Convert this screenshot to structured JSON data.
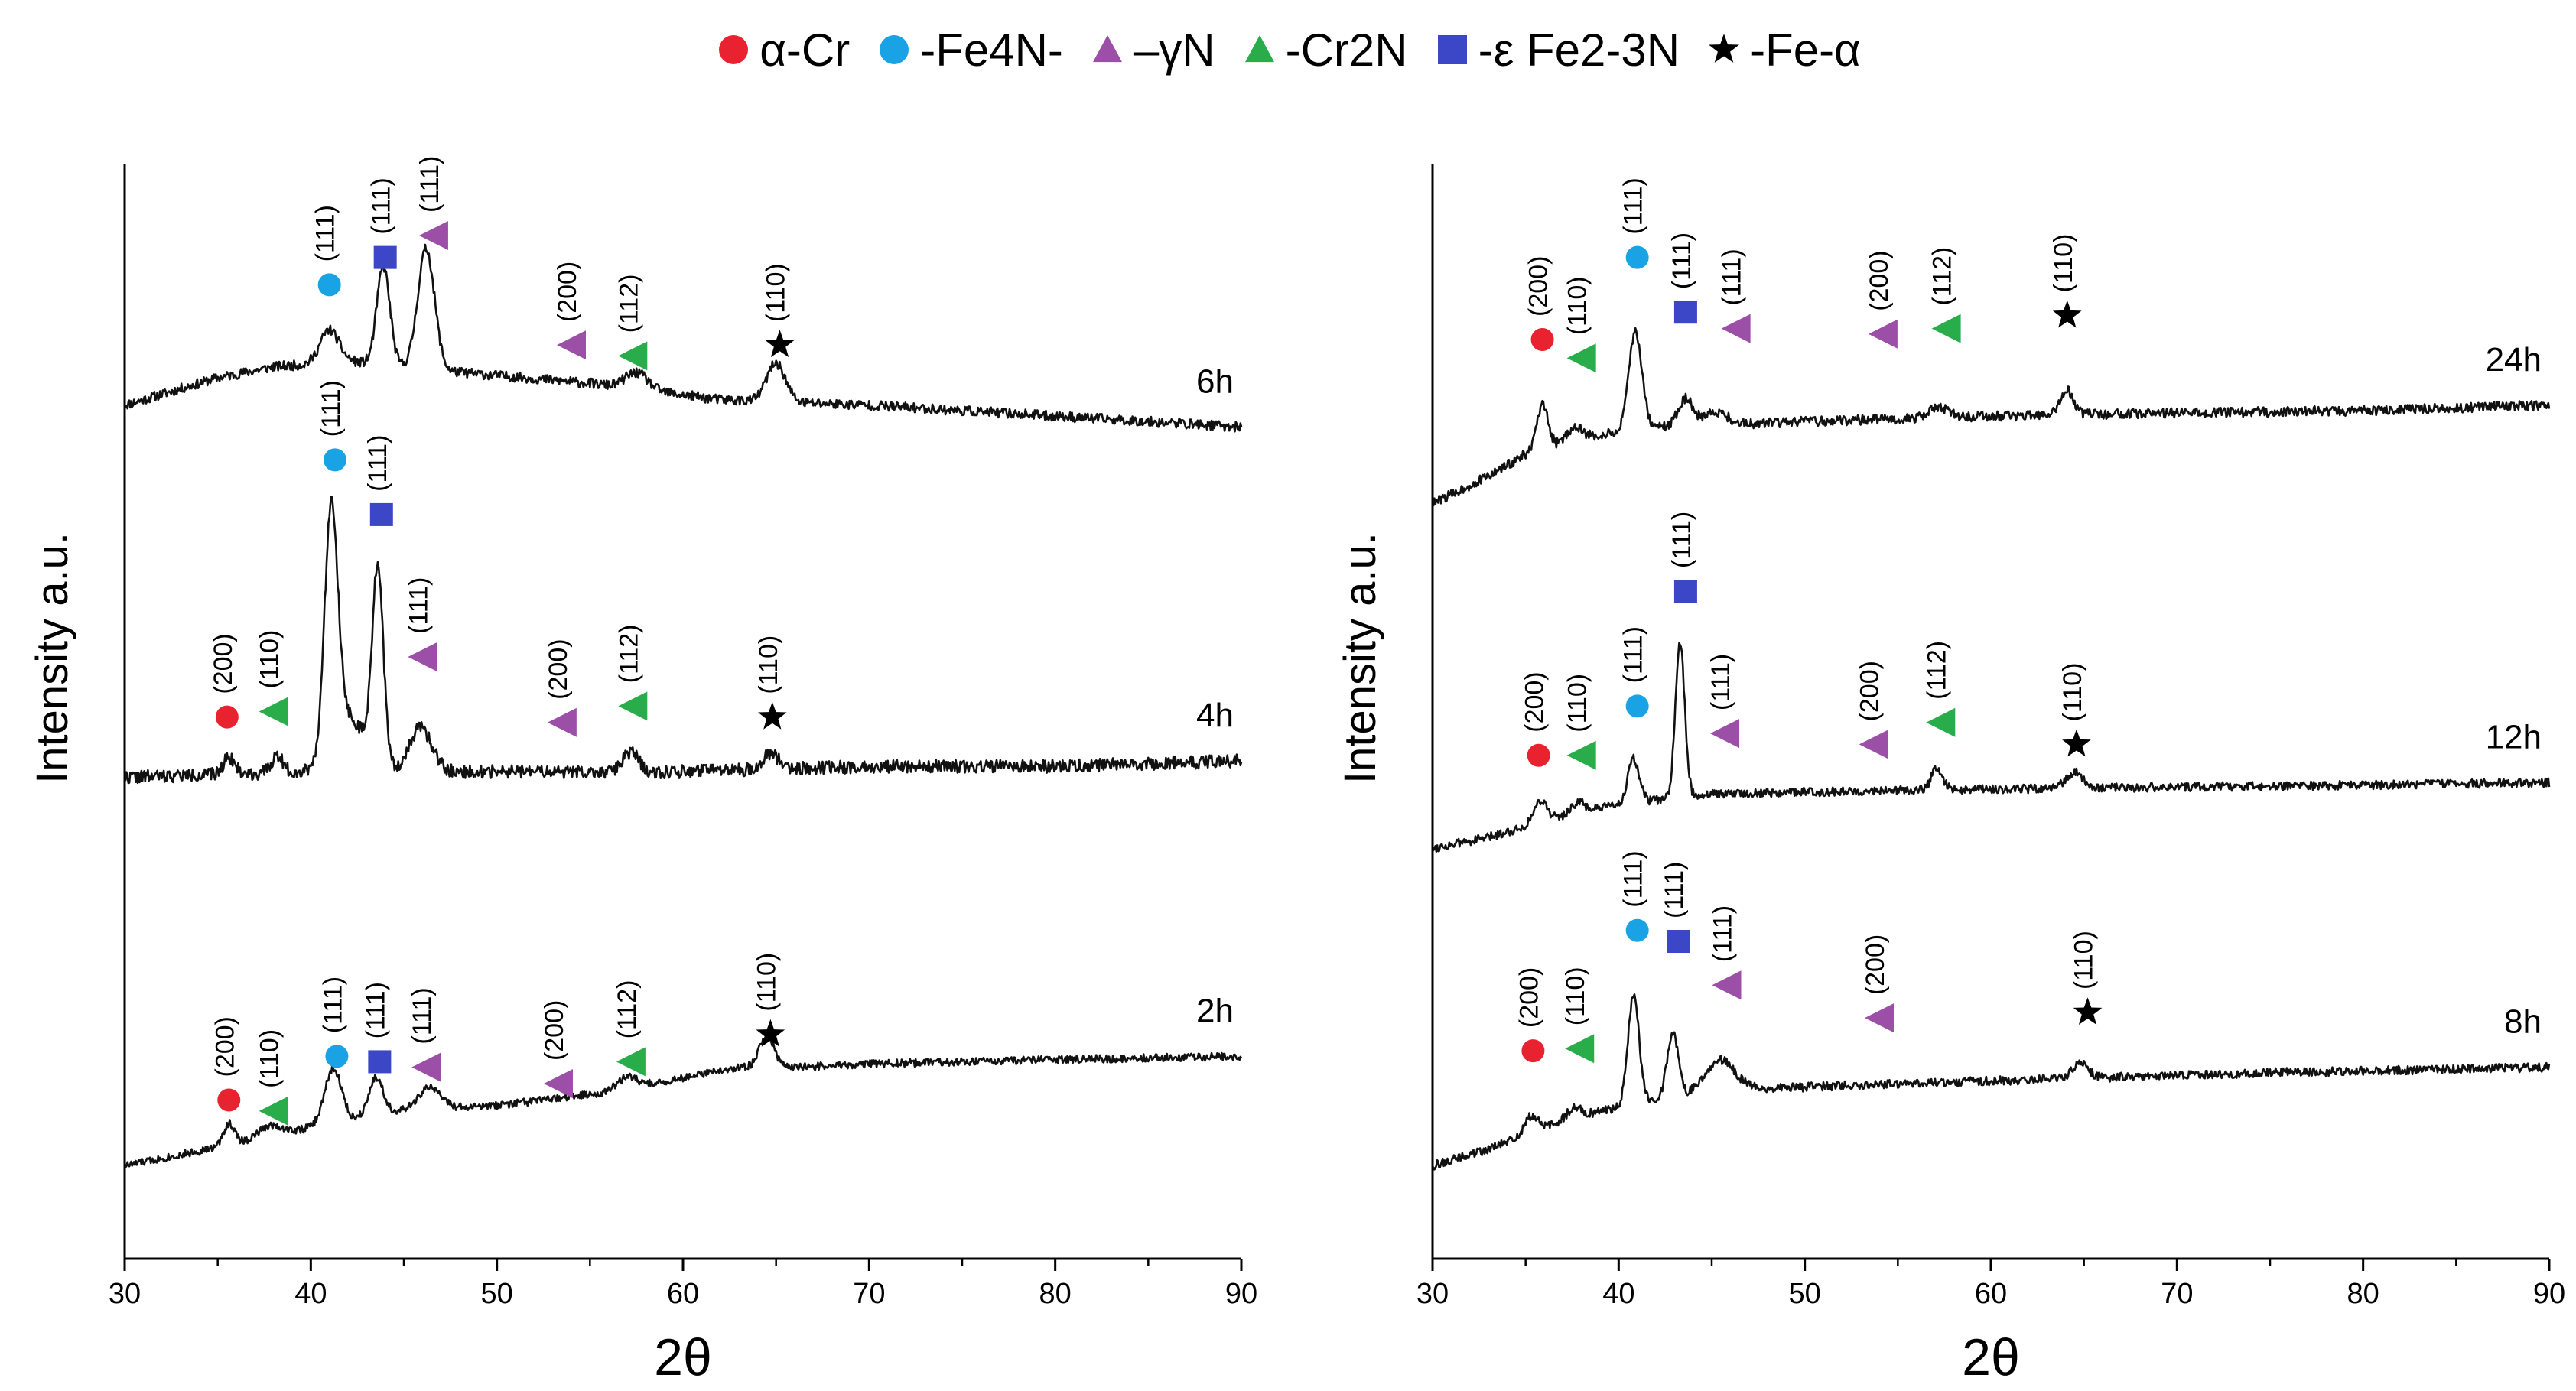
{
  "colors": {
    "alpha_cr": "#e8232f",
    "fe4n": "#1aa3e4",
    "gamma_n": "#9c4fa6",
    "cr2n": "#28ad4a",
    "eps": "#3b47c6",
    "fe_alpha": "#000000",
    "trace": "#111111"
  },
  "legend": [
    {
      "key": "alpha_cr",
      "shape": "circle",
      "icon": "red-circle-icon",
      "text": "α-Cr"
    },
    {
      "key": "fe4n",
      "shape": "circle",
      "icon": "cyan-circle-icon",
      "text": "-Fe4N-"
    },
    {
      "key": "gamma_n",
      "shape": "triangle-up",
      "icon": "purple-triangle-icon",
      "text": "–γN"
    },
    {
      "key": "cr2n",
      "shape": "triangle-up",
      "icon": "green-triangle-icon",
      "text": "-Cr2N"
    },
    {
      "key": "eps",
      "shape": "square",
      "icon": "blue-square-icon",
      "text": "-ε Fe2-3N"
    },
    {
      "key": "fe_alpha",
      "shape": "star",
      "icon": "black-star-icon",
      "text": "-Fe-α"
    }
  ],
  "chart_data": [
    {
      "type": "line",
      "title": "",
      "xlabel": "2θ",
      "ylabel": "Intensity a.u.",
      "xlim": [
        30,
        90
      ],
      "xticks": [
        30,
        40,
        50,
        60,
        70,
        80,
        90
      ],
      "ylim": [
        0,
        100
      ],
      "y_ticks_shown": false,
      "grid": false,
      "series": [
        {
          "name": "6h",
          "baseline": [
            [
              30,
              78
            ],
            [
              35,
              80.5
            ],
            [
              38,
              81.5
            ],
            [
              42,
              82
            ],
            [
              48,
              81
            ],
            [
              55,
              80
            ],
            [
              62,
              78.5
            ],
            [
              70,
              78
            ],
            [
              80,
              77
            ],
            [
              90,
              76
            ]
          ],
          "peaks": [
            [
              41,
              3,
              0.5
            ],
            [
              43.9,
              9,
              0.35
            ],
            [
              46.2,
              11,
              0.45
            ],
            [
              57.5,
              1.5,
              0.6
            ],
            [
              65,
              3.5,
              0.5
            ]
          ],
          "noise": 0.45,
          "seed": 11,
          "markers": [
            {
              "phase": "fe4n",
              "shape": "circle",
              "x": 41,
              "y": 89,
              "label": "(111)"
            },
            {
              "phase": "eps",
              "shape": "square",
              "x": 44,
              "y": 91.5,
              "label": "(111)"
            },
            {
              "phase": "gamma_n",
              "shape": "triangle-left",
              "x": 46.6,
              "y": 93.5,
              "label": "(111)"
            },
            {
              "phase": "gamma_n",
              "shape": "triangle-left",
              "x": 54,
              "y": 83.5,
              "label": "(200)"
            },
            {
              "phase": "cr2n",
              "shape": "triangle-left",
              "x": 57.3,
              "y": 82.5,
              "label": "(112)"
            },
            {
              "phase": "fe_alpha",
              "shape": "star",
              "x": 65.2,
              "y": 83.5,
              "label": "(110)"
            }
          ]
        },
        {
          "name": "4h",
          "baseline": [
            [
              30,
              44
            ],
            [
              40,
              44.5
            ],
            [
              50,
              44.5
            ],
            [
              60,
              44.5
            ],
            [
              70,
              45
            ],
            [
              80,
              45
            ],
            [
              90,
              45.5
            ]
          ],
          "peaks": [
            [
              35.6,
              1.6,
              0.3
            ],
            [
              38.2,
              1.6,
              0.3
            ],
            [
              41.1,
              22,
              0.35
            ],
            [
              42,
              5,
              0.9
            ],
            [
              43.6,
              18,
              0.3
            ],
            [
              45.9,
              4,
              0.6
            ],
            [
              57.2,
              1.8,
              0.4
            ],
            [
              64.7,
              1.5,
              0.4
            ]
          ],
          "noise": 0.6,
          "seed": 22,
          "markers": [
            {
              "phase": "alpha_cr",
              "shape": "circle",
              "x": 35.5,
              "y": 49.5,
              "label": "(200)"
            },
            {
              "phase": "cr2n",
              "shape": "triangle-left",
              "x": 38,
              "y": 50,
              "label": "(110)"
            },
            {
              "phase": "fe4n",
              "shape": "circle",
              "x": 41.3,
              "y": 73,
              "label": "(111)"
            },
            {
              "phase": "eps",
              "shape": "square",
              "x": 43.8,
              "y": 68,
              "label": "(111)"
            },
            {
              "phase": "gamma_n",
              "shape": "triangle-left",
              "x": 46,
              "y": 55,
              "label": "(111)"
            },
            {
              "phase": "gamma_n",
              "shape": "triangle-left",
              "x": 53.5,
              "y": 49,
              "label": "(200)"
            },
            {
              "phase": "cr2n",
              "shape": "triangle-left",
              "x": 57.3,
              "y": 50.5,
              "label": "(112)"
            },
            {
              "phase": "fe_alpha",
              "shape": "star",
              "x": 64.8,
              "y": 49.5,
              "label": "(110)"
            }
          ]
        },
        {
          "name": "2h",
          "baseline": [
            [
              30,
              8.5
            ],
            [
              33,
              9.5
            ],
            [
              36,
              10.5
            ],
            [
              40,
              12
            ],
            [
              45,
              13.5
            ],
            [
              50,
              14
            ],
            [
              55,
              15
            ],
            [
              60,
              16.5
            ],
            [
              63,
              17.5
            ],
            [
              66,
              17.5
            ],
            [
              70,
              17.8
            ],
            [
              80,
              18.2
            ],
            [
              90,
              18.5
            ]
          ],
          "peaks": [
            [
              35.6,
              2,
              0.3
            ],
            [
              37.8,
              1,
              0.6
            ],
            [
              41.2,
              5,
              0.45
            ],
            [
              43.5,
              3.5,
              0.4
            ],
            [
              46.4,
              2,
              0.6
            ],
            [
              57,
              1,
              0.5
            ],
            [
              64.5,
              2.8,
              0.4
            ]
          ],
          "noise": 0.35,
          "seed": 33,
          "markers": [
            {
              "phase": "alpha_cr",
              "shape": "circle",
              "x": 35.6,
              "y": 14.5,
              "label": "(200)"
            },
            {
              "phase": "cr2n",
              "shape": "triangle-left",
              "x": 38,
              "y": 13.5,
              "label": "(110)"
            },
            {
              "phase": "fe4n",
              "shape": "circle",
              "x": 41.4,
              "y": 18.5,
              "label": "(111)"
            },
            {
              "phase": "eps",
              "shape": "square",
              "x": 43.7,
              "y": 18,
              "label": "(111)"
            },
            {
              "phase": "gamma_n",
              "shape": "triangle-left",
              "x": 46.2,
              "y": 17.5,
              "label": "(111)"
            },
            {
              "phase": "gamma_n",
              "shape": "triangle-left",
              "x": 53.3,
              "y": 16,
              "label": "(200)"
            },
            {
              "phase": "cr2n",
              "shape": "triangle-left",
              "x": 57.2,
              "y": 18,
              "label": "(112)"
            },
            {
              "phase": "fe_alpha",
              "shape": "star",
              "x": 64.7,
              "y": 20.5,
              "label": "(110)"
            }
          ]
        }
      ]
    },
    {
      "type": "line",
      "title": "",
      "xlabel": "2θ",
      "ylabel": "Intensity a.u.",
      "xlim": [
        30,
        90
      ],
      "xticks": [
        30,
        40,
        50,
        60,
        70,
        80,
        90
      ],
      "ylim": [
        0,
        100
      ],
      "y_ticks_shown": false,
      "grid": false,
      "series": [
        {
          "name": "24h",
          "baseline": [
            [
              30,
              69
            ],
            [
              33,
              71.5
            ],
            [
              35,
              73.5
            ],
            [
              38,
              75
            ],
            [
              42,
              76
            ],
            [
              50,
              76.5
            ],
            [
              60,
              77
            ],
            [
              70,
              77.3
            ],
            [
              80,
              77.5
            ],
            [
              90,
              78
            ]
          ],
          "peaks": [
            [
              35.9,
              4,
              0.3
            ],
            [
              37.6,
              1.2,
              0.4
            ],
            [
              40.9,
              9,
              0.35
            ],
            [
              43.6,
              2.5,
              0.4
            ],
            [
              45.2,
              1.2,
              0.6
            ],
            [
              57.2,
              1,
              0.5
            ],
            [
              64.1,
              2.2,
              0.35
            ]
          ],
          "noise": 0.45,
          "seed": 44,
          "markers": [
            {
              "phase": "alpha_cr",
              "shape": "circle",
              "x": 35.9,
              "y": 84,
              "label": "(200)"
            },
            {
              "phase": "cr2n",
              "shape": "triangle-left",
              "x": 38,
              "y": 82.3,
              "label": "(110)"
            },
            {
              "phase": "fe4n",
              "shape": "circle",
              "x": 41,
              "y": 91.5,
              "label": "(111)"
            },
            {
              "phase": "eps",
              "shape": "square",
              "x": 43.6,
              "y": 86.5,
              "label": "(111)"
            },
            {
              "phase": "gamma_n",
              "shape": "triangle-left",
              "x": 46.3,
              "y": 85,
              "label": "(111)"
            },
            {
              "phase": "gamma_n",
              "shape": "triangle-left",
              "x": 54.2,
              "y": 84.5,
              "label": "(200)"
            },
            {
              "phase": "cr2n",
              "shape": "triangle-left",
              "x": 57.6,
              "y": 85,
              "label": "(112)"
            },
            {
              "phase": "fe_alpha",
              "shape": "star",
              "x": 64.1,
              "y": 86.2,
              "label": "(110)"
            }
          ]
        },
        {
          "name": "12h",
          "baseline": [
            [
              30,
              37.5
            ],
            [
              33,
              38.5
            ],
            [
              36,
              40
            ],
            [
              40,
              41.5
            ],
            [
              45,
              42.5
            ],
            [
              55,
              42.8
            ],
            [
              65,
              43
            ],
            [
              75,
              43.2
            ],
            [
              90,
              43.5
            ]
          ],
          "peaks": [
            [
              35.8,
              2,
              0.35
            ],
            [
              37.8,
              1,
              0.4
            ],
            [
              40.8,
              4,
              0.3
            ],
            [
              43.3,
              14,
              0.25
            ],
            [
              57.1,
              2,
              0.3
            ],
            [
              64.5,
              1.5,
              0.45
            ]
          ],
          "noise": 0.4,
          "seed": 55,
          "markers": [
            {
              "phase": "alpha_cr",
              "shape": "circle",
              "x": 35.7,
              "y": 46,
              "label": "(200)"
            },
            {
              "phase": "cr2n",
              "shape": "triangle-left",
              "x": 38,
              "y": 46,
              "label": "(110)"
            },
            {
              "phase": "fe4n",
              "shape": "circle",
              "x": 41,
              "y": 50.5,
              "label": "(111)"
            },
            {
              "phase": "eps",
              "shape": "square",
              "x": 43.6,
              "y": 61,
              "label": "(111)"
            },
            {
              "phase": "gamma_n",
              "shape": "triangle-left",
              "x": 45.7,
              "y": 48,
              "label": "(111)"
            },
            {
              "phase": "gamma_n",
              "shape": "triangle-left",
              "x": 53.7,
              "y": 47,
              "label": "(200)"
            },
            {
              "phase": "cr2n",
              "shape": "triangle-left",
              "x": 57.3,
              "y": 49,
              "label": "(112)"
            },
            {
              "phase": "fe_alpha",
              "shape": "star",
              "x": 64.6,
              "y": 47,
              "label": "(110)"
            }
          ]
        },
        {
          "name": "8h",
          "baseline": [
            [
              30,
              8.5
            ],
            [
              33,
              10
            ],
            [
              36,
              12
            ],
            [
              39,
              13.5
            ],
            [
              42,
              14.5
            ],
            [
              47,
              15.5
            ],
            [
              55,
              16
            ],
            [
              65,
              16.5
            ],
            [
              75,
              17
            ],
            [
              90,
              17.5
            ]
          ],
          "peaks": [
            [
              35.3,
              1.5,
              0.35
            ],
            [
              37.6,
              1,
              0.4
            ],
            [
              40.8,
              10,
              0.3
            ],
            [
              42.9,
              6,
              0.3
            ],
            [
              45.4,
              3,
              0.8
            ],
            [
              64.8,
              1.5,
              0.4
            ]
          ],
          "noise": 0.4,
          "seed": 66,
          "markers": [
            {
              "phase": "alpha_cr",
              "shape": "circle",
              "x": 35.4,
              "y": 19,
              "label": "(200)"
            },
            {
              "phase": "cr2n",
              "shape": "triangle-left",
              "x": 37.9,
              "y": 19.2,
              "label": "(110)"
            },
            {
              "phase": "fe4n",
              "shape": "circle",
              "x": 41,
              "y": 30,
              "label": "(111)"
            },
            {
              "phase": "eps",
              "shape": "square",
              "x": 43.2,
              "y": 29,
              "label": "(111)"
            },
            {
              "phase": "gamma_n",
              "shape": "triangle-left",
              "x": 45.8,
              "y": 25,
              "label": "(111)"
            },
            {
              "phase": "gamma_n",
              "shape": "triangle-left",
              "x": 54,
              "y": 22,
              "label": "(200)"
            },
            {
              "phase": "fe_alpha",
              "shape": "star",
              "x": 65.2,
              "y": 22.5,
              "label": "(110)"
            }
          ]
        }
      ]
    }
  ]
}
